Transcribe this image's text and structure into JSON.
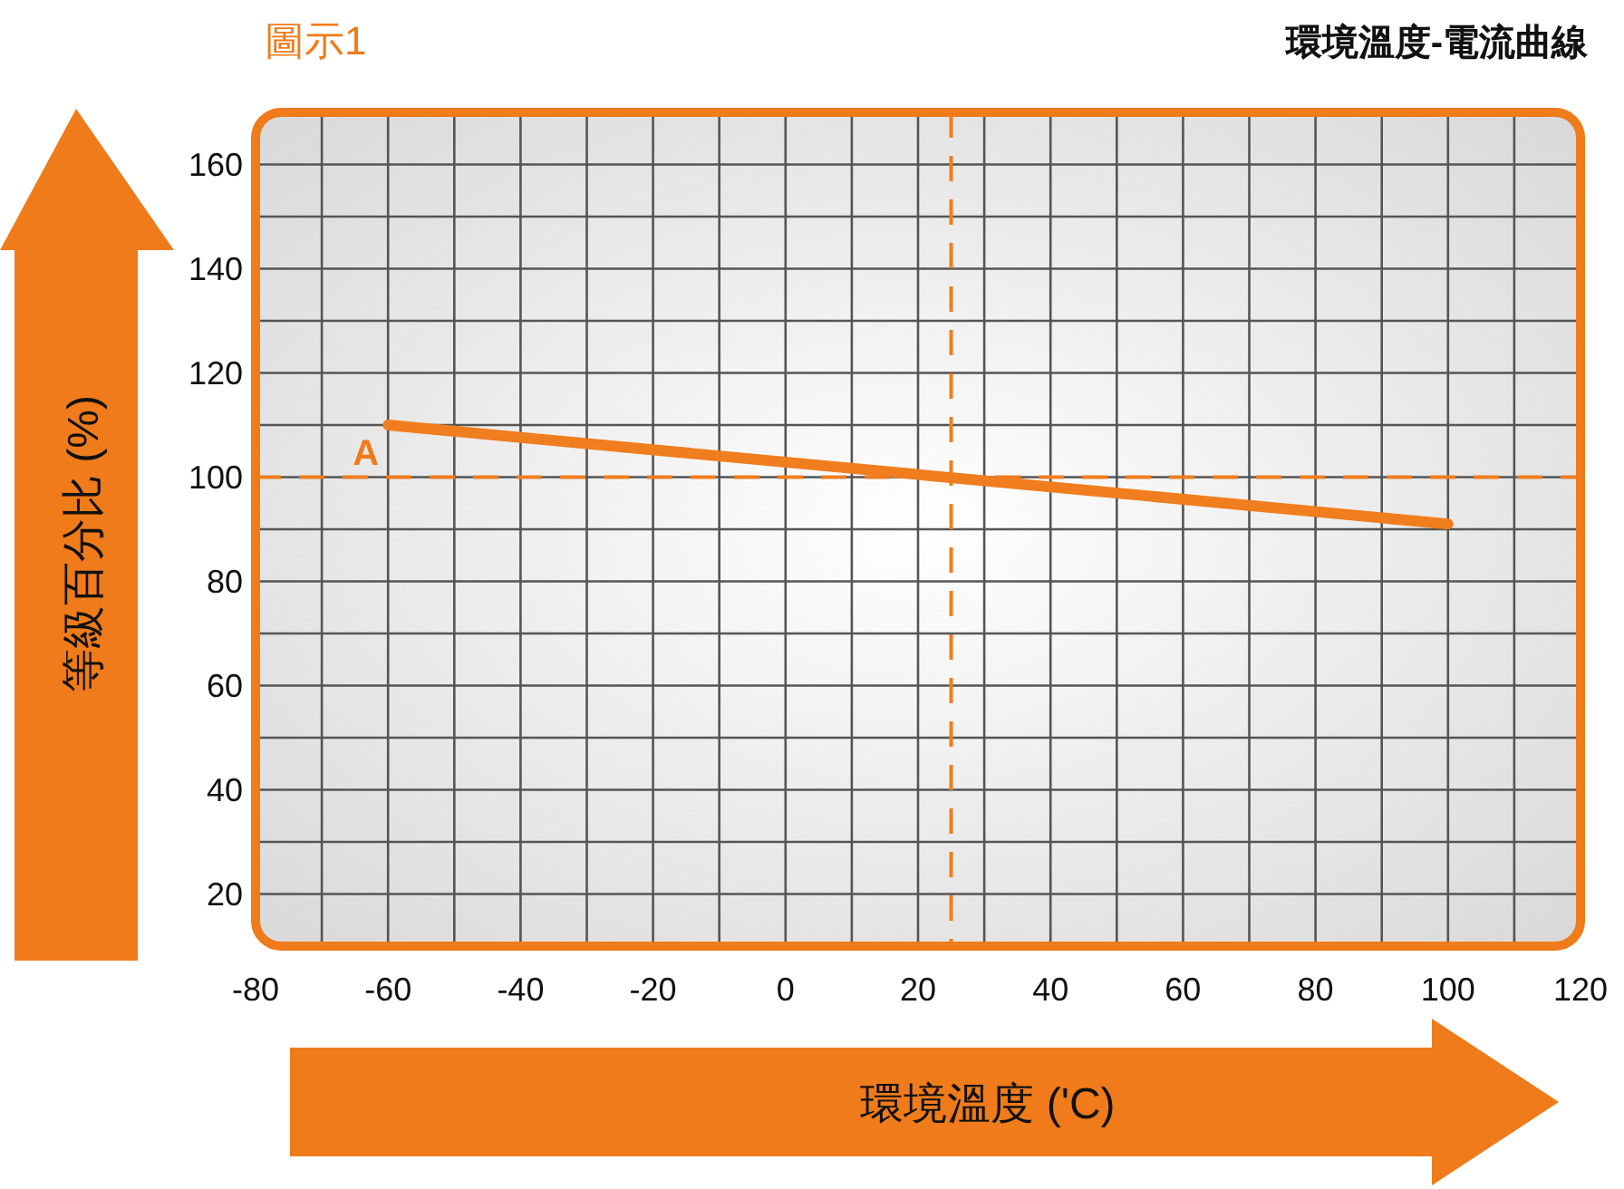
{
  "chart_data": {
    "type": "line",
    "title": "環境溫度-電流曲線",
    "subtitle": "圖示1",
    "xlabel": "環境溫度 ('C)",
    "ylabel": "等級百分比 (%)",
    "x": [
      -60,
      100
    ],
    "series": [
      {
        "color": "#f07d1e",
        "values": [
          110,
          91
        ]
      }
    ],
    "xlim": [
      -80,
      120
    ],
    "xticks": [
      -80,
      {
        "value": -70,
        "label": null
      },
      -60,
      {
        "value": -50,
        "label": null
      },
      -40,
      {
        "value": -30,
        "label": null
      },
      -20,
      {
        "value": -10,
        "label": null
      },
      0,
      {
        "value": 10,
        "label": null
      },
      20,
      {
        "value": 30,
        "label": null
      },
      40,
      {
        "value": 50,
        "label": null
      },
      60,
      {
        "value": 70,
        "label": null
      },
      80,
      {
        "value": 90,
        "label": null
      },
      100,
      {
        "value": 110,
        "label": null
      },
      120
    ],
    "ylim": [
      10,
      170
    ],
    "yticks": [
      {
        "value": 10,
        "label": null
      },
      20,
      {
        "value": 30,
        "label": null
      },
      40,
      {
        "value": 50,
        "label": null
      },
      60,
      {
        "value": 70,
        "label": null
      },
      80,
      {
        "value": 90,
        "label": null
      },
      100,
      {
        "value": 110,
        "label": null
      },
      120,
      {
        "value": 130,
        "label": null
      },
      140,
      {
        "value": 150,
        "label": null
      },
      160,
      {
        "value": 170,
        "label": null
      }
    ],
    "grid": true,
    "line_style": "solid",
    "marker": "none",
    "ref_lines": [
      {
        "axis": "y",
        "value": 100,
        "color": "#f07d1e",
        "line_style": "dashed"
      },
      {
        "axis": "x",
        "value": 25,
        "color": "#f07d1e",
        "line_style": "dashed"
      }
    ],
    "annotations": [
      {
        "text": "A",
        "x": -60,
        "y": 110
      }
    ]
  }
}
